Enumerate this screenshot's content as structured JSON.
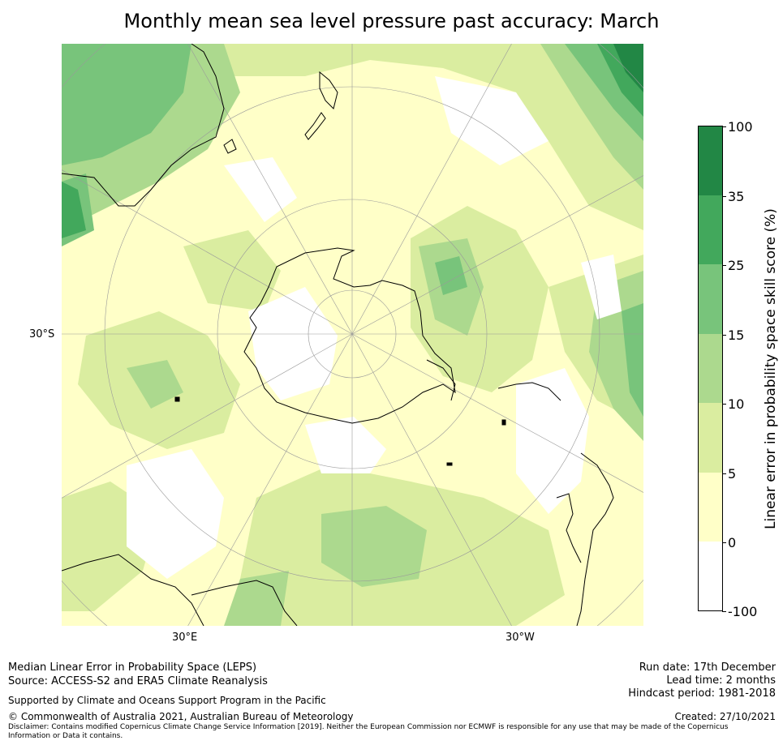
{
  "title": "Monthly mean sea level pressure past accuracy: March",
  "map": {
    "projection": "south-polar-stereographic",
    "lat_label": "30°S",
    "lon_labels": [
      "30°E",
      "30°W"
    ]
  },
  "colorbar": {
    "label": "Linear error in probability space skill score (%)",
    "ticks": [
      "100",
      "35",
      "25",
      "15",
      "10",
      "5",
      "0",
      "-100"
    ],
    "colors": [
      "#228745",
      "#42a85c",
      "#78c47b",
      "#acd98e",
      "#daedA0",
      "#ffffc8",
      "#ffffff"
    ]
  },
  "footer": {
    "left_line1": "Median Linear Error in Probability Space (LEPS)",
    "left_line2": "Source: ACCESS-S2 and ERA5 Climate Reanalysis",
    "support": "Supported by Climate and Oceans Support Program in the Pacific",
    "copyright": "© Commonwealth of Australia 2021, Australian Bureau of Meteorology",
    "disclaimer_line1": "Disclaimer: Contains modified Copernicus Climate Change Service Information [2019]. Neither the European Commission nor ECMWF is responsible for any use that may be made of the Copernicus",
    "disclaimer_line2": "Information or Data it contains.",
    "run_date": "Run date: 17th December",
    "lead_time": "Lead time: 2 months",
    "hindcast": "Hindcast period: 1981-2018",
    "created": "Created: 27/10/2021"
  }
}
